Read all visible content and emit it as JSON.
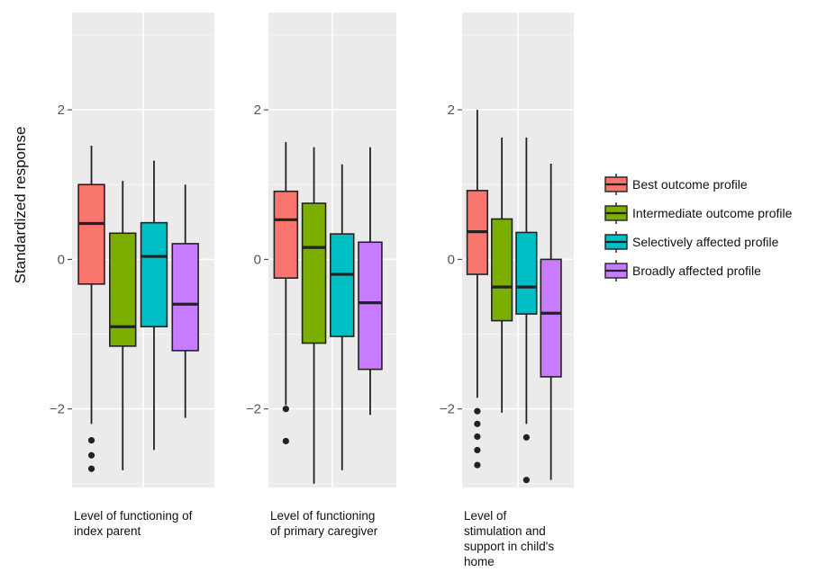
{
  "chart_data": {
    "type": "boxplot",
    "ylabel": "Standardized response",
    "ylim": [
      -3.05,
      3.3
    ],
    "yticks": [
      2,
      0,
      -2
    ],
    "ytick_labels": [
      "2",
      "0",
      "−2"
    ],
    "legend": {
      "placement": "right",
      "entries": [
        {
          "name": "Best outcome profile",
          "color": "#f8766d"
        },
        {
          "name": "Intermediate outcome profile",
          "color": "#7cae00"
        },
        {
          "name": "Selectively affected profile",
          "color": "#00bfc4"
        },
        {
          "name": "Broadly affected profile",
          "color": "#c77cff"
        }
      ]
    },
    "panels": [
      {
        "label_lines": [
          "Level of functioning of",
          "index parent"
        ],
        "boxes": [
          {
            "series": "Best outcome profile",
            "min": -2.2,
            "q1": -0.33,
            "median": 0.48,
            "q3": 1.0,
            "max": 1.52,
            "outliers": [
              -2.42,
              -2.62,
              -2.8
            ]
          },
          {
            "series": "Intermediate outcome profile",
            "min": -2.82,
            "q1": -1.16,
            "median": -0.9,
            "q3": 0.35,
            "max": 1.05,
            "outliers": []
          },
          {
            "series": "Selectively affected profile",
            "min": -2.55,
            "q1": -0.9,
            "median": 0.04,
            "q3": 0.49,
            "max": 1.32,
            "outliers": []
          },
          {
            "series": "Broadly affected profile",
            "min": -2.12,
            "q1": -1.22,
            "median": -0.6,
            "q3": 0.21,
            "max": 1.0,
            "outliers": []
          }
        ]
      },
      {
        "label_lines": [
          "Level of functioning",
          "of primary caregiver"
        ],
        "boxes": [
          {
            "series": "Best outcome profile",
            "min": -1.95,
            "q1": -0.25,
            "median": 0.53,
            "q3": 0.91,
            "max": 1.57,
            "outliers": [
              -2.0,
              -2.43
            ]
          },
          {
            "series": "Intermediate outcome profile",
            "min": -3.0,
            "q1": -1.12,
            "median": 0.16,
            "q3": 0.75,
            "max": 1.5,
            "outliers": []
          },
          {
            "series": "Selectively affected profile",
            "min": -2.82,
            "q1": -1.03,
            "median": -0.2,
            "q3": 0.34,
            "max": 1.27,
            "outliers": []
          },
          {
            "series": "Broadly affected profile",
            "min": -2.08,
            "q1": -1.47,
            "median": -0.58,
            "q3": 0.23,
            "max": 1.5,
            "outliers": []
          }
        ]
      },
      {
        "label_lines": [
          "Level of",
          "stimulation and",
          "support in child's",
          "home"
        ],
        "boxes": [
          {
            "series": "Best outcome profile",
            "min": -1.85,
            "q1": -0.2,
            "median": 0.37,
            "q3": 0.92,
            "max": 2.0,
            "outliers": [
              -2.03,
              -2.2,
              -2.37,
              -2.55,
              -2.75
            ]
          },
          {
            "series": "Intermediate outcome profile",
            "min": -2.05,
            "q1": -0.82,
            "median": -0.37,
            "q3": 0.54,
            "max": 1.63,
            "outliers": []
          },
          {
            "series": "Selectively affected profile",
            "min": -2.2,
            "q1": -0.73,
            "median": -0.37,
            "q3": 0.36,
            "max": 1.63,
            "outliers": [
              -2.38,
              -2.95
            ]
          },
          {
            "series": "Broadly affected profile",
            "min": -2.95,
            "q1": -1.57,
            "median": -0.72,
            "q3": 0.0,
            "max": 1.28,
            "outliers": []
          }
        ]
      }
    ],
    "grid": true
  }
}
